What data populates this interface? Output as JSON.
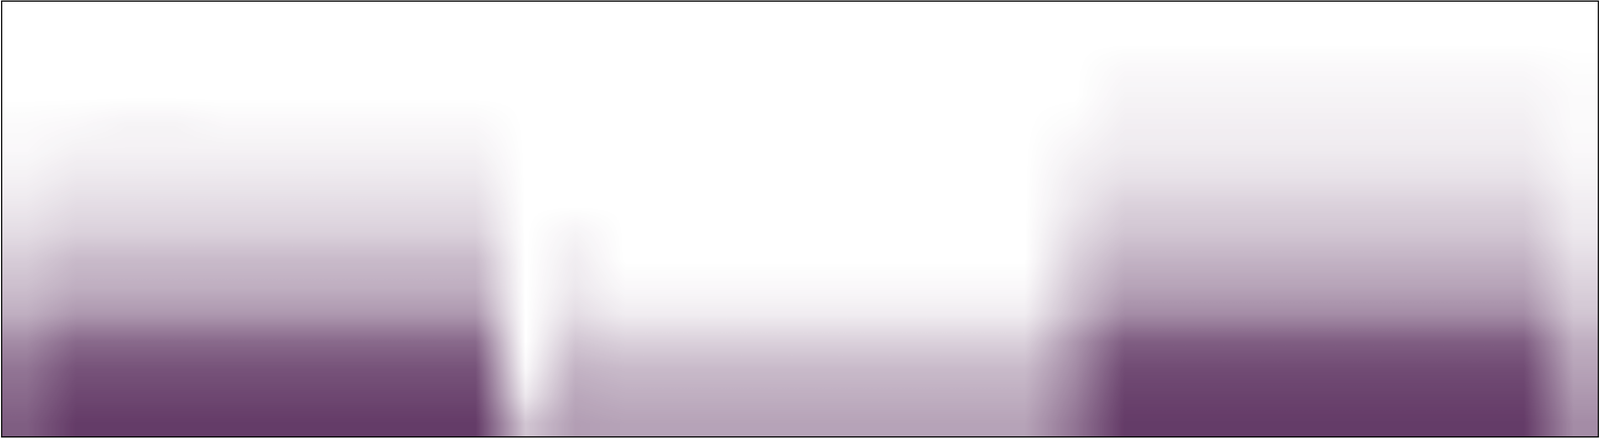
{
  "chart_data": {
    "type": "heatmap",
    "color": "#4a1a4e",
    "tick_labels": false,
    "value_range": [
      0,
      1
    ],
    "cells": [
      [
        0.7,
        0.85,
        0.85,
        0.85,
        0.85,
        0.85,
        0.85,
        0.85,
        0.85,
        0.85,
        0.25,
        0.42,
        0.4,
        0.4,
        0.4,
        0.4,
        0.4,
        0.4,
        0.4,
        0.4,
        0.4,
        0.6,
        0.85,
        0.85,
        0.85,
        0.85,
        0.85,
        0.85,
        0.85,
        0.85,
        0.85,
        0.5
      ],
      [
        0.65,
        0.8,
        0.8,
        0.8,
        0.8,
        0.8,
        0.8,
        0.8,
        0.8,
        0.8,
        0.1,
        0.38,
        0.35,
        0.35,
        0.35,
        0.35,
        0.35,
        0.35,
        0.35,
        0.35,
        0.35,
        0.55,
        0.82,
        0.82,
        0.82,
        0.82,
        0.82,
        0.82,
        0.82,
        0.82,
        0.82,
        0.45
      ],
      [
        0.6,
        0.75,
        0.75,
        0.75,
        0.75,
        0.75,
        0.75,
        0.75,
        0.75,
        0.75,
        0.03,
        0.33,
        0.3,
        0.3,
        0.3,
        0.3,
        0.3,
        0.3,
        0.3,
        0.3,
        0.3,
        0.5,
        0.78,
        0.78,
        0.78,
        0.78,
        0.78,
        0.78,
        0.78,
        0.78,
        0.78,
        0.4
      ],
      [
        0.5,
        0.65,
        0.65,
        0.65,
        0.65,
        0.65,
        0.65,
        0.65,
        0.65,
        0.65,
        0,
        0.25,
        0.2,
        0.2,
        0.2,
        0.2,
        0.2,
        0.2,
        0.2,
        0.2,
        0.2,
        0.45,
        0.7,
        0.7,
        0.7,
        0.7,
        0.7,
        0.7,
        0.7,
        0.7,
        0.7,
        0.35
      ],
      [
        0.35,
        0.45,
        0.45,
        0.45,
        0.45,
        0.45,
        0.45,
        0.45,
        0.45,
        0.45,
        0,
        0.15,
        0.08,
        0.08,
        0.08,
        0.08,
        0.08,
        0.08,
        0.08,
        0.08,
        0.08,
        0.3,
        0.5,
        0.5,
        0.5,
        0.5,
        0.5,
        0.5,
        0.5,
        0.5,
        0.5,
        0.25
      ],
      [
        0.28,
        0.35,
        0.35,
        0.35,
        0.35,
        0.35,
        0.35,
        0.35,
        0.35,
        0.35,
        0,
        0.1,
        0.03,
        0.03,
        0.03,
        0.03,
        0.03,
        0.03,
        0.03,
        0.03,
        0.03,
        0.25,
        0.4,
        0.4,
        0.4,
        0.4,
        0.4,
        0.4,
        0.4,
        0.4,
        0.4,
        0.2
      ],
      [
        0.22,
        0.3,
        0.3,
        0.3,
        0.3,
        0.3,
        0.3,
        0.3,
        0.3,
        0.3,
        0,
        0.08,
        0,
        0,
        0,
        0,
        0,
        0,
        0,
        0,
        0,
        0.2,
        0.33,
        0.33,
        0.33,
        0.33,
        0.33,
        0.33,
        0.33,
        0.33,
        0.33,
        0.15
      ],
      [
        0.15,
        0.2,
        0.2,
        0.2,
        0.2,
        0.2,
        0.2,
        0.2,
        0.2,
        0.2,
        0,
        0.05,
        0,
        0,
        0,
        0,
        0,
        0,
        0,
        0,
        0,
        0.15,
        0.25,
        0.25,
        0.25,
        0.25,
        0.25,
        0.25,
        0.25,
        0.25,
        0.25,
        0.1
      ],
      [
        0.1,
        0.15,
        0.15,
        0.15,
        0.15,
        0.15,
        0.15,
        0.15,
        0.15,
        0.15,
        0,
        0,
        0,
        0,
        0,
        0,
        0,
        0,
        0,
        0,
        0,
        0.1,
        0.2,
        0.2,
        0.2,
        0.2,
        0.2,
        0.2,
        0.2,
        0.2,
        0.2,
        0.08
      ],
      [
        0.06,
        0.1,
        0.1,
        0.1,
        0.1,
        0.1,
        0.1,
        0.1,
        0.1,
        0.1,
        0,
        0,
        0,
        0,
        0,
        0,
        0,
        0,
        0,
        0,
        0,
        0.08,
        0.13,
        0.13,
        0.13,
        0.13,
        0.13,
        0.13,
        0.13,
        0.13,
        0.13,
        0.05
      ],
      [
        0.03,
        0.06,
        0.06,
        0.06,
        0.06,
        0.06,
        0.06,
        0.06,
        0.06,
        0.06,
        0,
        0,
        0,
        0,
        0,
        0,
        0,
        0,
        0,
        0,
        0,
        0.05,
        0.09,
        0.09,
        0.09,
        0.09,
        0.09,
        0.09,
        0.09,
        0.09,
        0.09,
        0.03
      ],
      [
        0.02,
        0.03,
        0.05,
        0.05,
        0.03,
        0.03,
        0.03,
        0.03,
        0.03,
        0.03,
        0,
        0,
        0,
        0,
        0,
        0,
        0,
        0,
        0,
        0,
        0,
        0.02,
        0.07,
        0.07,
        0.07,
        0.07,
        0.07,
        0.07,
        0.07,
        0.07,
        0.07,
        0.02
      ],
      [
        0,
        0,
        0,
        0,
        0,
        0,
        0,
        0,
        0,
        0,
        0,
        0,
        0,
        0,
        0,
        0,
        0,
        0,
        0,
        0,
        0,
        0,
        0.05,
        0.05,
        0.05,
        0.05,
        0.05,
        0.05,
        0.05,
        0.05,
        0.05,
        0.02
      ],
      [
        0,
        0,
        0,
        0,
        0,
        0,
        0,
        0,
        0,
        0,
        0,
        0,
        0,
        0,
        0,
        0,
        0,
        0,
        0,
        0,
        0,
        0,
        0.03,
        0.03,
        0.03,
        0.03,
        0.03,
        0.03,
        0.03,
        0.03,
        0.03,
        0.01
      ],
      [
        0,
        0,
        0,
        0,
        0,
        0,
        0,
        0,
        0,
        0,
        0,
        0,
        0,
        0,
        0,
        0,
        0,
        0,
        0,
        0,
        0,
        0,
        0,
        0,
        0,
        0,
        0,
        0,
        0,
        0,
        0,
        0
      ],
      [
        0,
        0,
        0,
        0,
        0,
        0,
        0,
        0,
        0,
        0,
        0,
        0,
        0,
        0,
        0,
        0,
        0,
        0,
        0,
        0,
        0,
        0,
        0,
        0,
        0,
        0,
        0,
        0,
        0,
        0,
        0,
        0
      ]
    ]
  }
}
